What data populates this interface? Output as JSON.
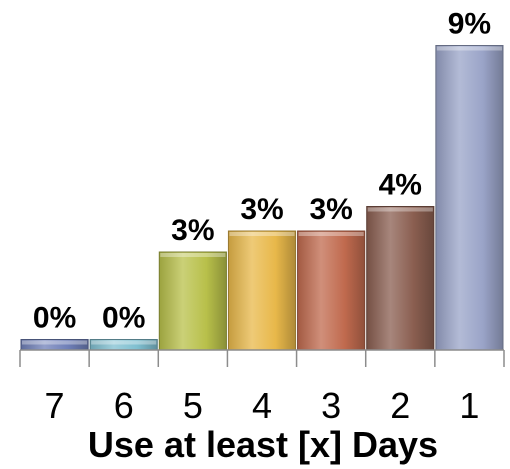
{
  "chart_data": {
    "type": "bar",
    "categories": [
      "7",
      "6",
      "5",
      "4",
      "3",
      "2",
      "1"
    ],
    "values": [
      0.3,
      0.3,
      2.8,
      3.4,
      3.4,
      4.1,
      8.7
    ],
    "data_labels": [
      "0%",
      "0%",
      "3%",
      "3%",
      "3%",
      "4%",
      "9%"
    ],
    "xlabel": "Use at least [x] Days",
    "ylabel": "",
    "title": "",
    "ylim": [
      0,
      10
    ],
    "grid": false,
    "legend": "none",
    "colors": [
      "#6f7fb8",
      "#7fbfd0",
      "#b8c04a",
      "#e8b84a",
      "#c06a4e",
      "#8a5e50",
      "#9aa4c8"
    ]
  }
}
